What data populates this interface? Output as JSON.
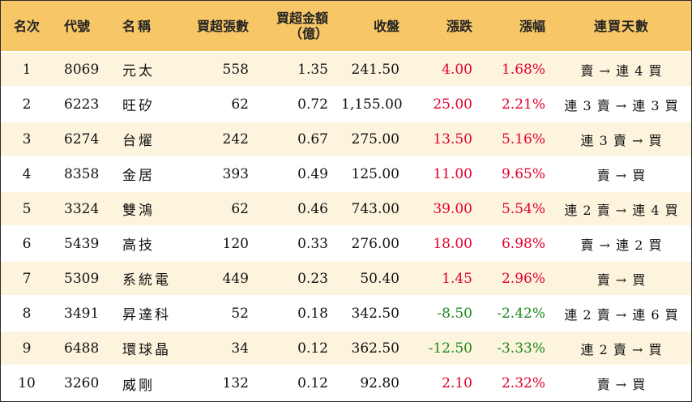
{
  "headers": {
    "rank": "名次",
    "code": "代號",
    "name": "名稱",
    "net_buy_lots": "買超張數",
    "net_buy_amount_line1": "買超金額",
    "net_buy_amount_line2": "（億）",
    "close": "收盤",
    "change": "漲跌",
    "change_pct": "漲幅",
    "streak": "連買天數"
  },
  "colors": {
    "header_bg": "#f7c767",
    "row_odd_bg": "#fdf4dd",
    "up": "#e4002b",
    "down": "#1d8a1d"
  },
  "rows": [
    {
      "rank": "1",
      "code": "8069",
      "name": "元太",
      "lots": "558",
      "amount": "1.35",
      "close": "241.50",
      "change": "4.00",
      "change_pct": "1.68%",
      "streak": "賣 → 連 4 買",
      "direction": "up"
    },
    {
      "rank": "2",
      "code": "6223",
      "name": "旺矽",
      "lots": "62",
      "amount": "0.72",
      "close": "1,155.00",
      "change": "25.00",
      "change_pct": "2.21%",
      "streak": "連 3 賣 → 連 3 買",
      "direction": "up"
    },
    {
      "rank": "3",
      "code": "6274",
      "name": "台燿",
      "lots": "242",
      "amount": "0.67",
      "close": "275.00",
      "change": "13.50",
      "change_pct": "5.16%",
      "streak": "連 3 賣 → 買",
      "direction": "up"
    },
    {
      "rank": "4",
      "code": "8358",
      "name": "金居",
      "lots": "393",
      "amount": "0.49",
      "close": "125.00",
      "change": "11.00",
      "change_pct": "9.65%",
      "streak": "賣 → 買",
      "direction": "up"
    },
    {
      "rank": "5",
      "code": "3324",
      "name": "雙鴻",
      "lots": "62",
      "amount": "0.46",
      "close": "743.00",
      "change": "39.00",
      "change_pct": "5.54%",
      "streak": "連 2 賣 → 連 4 買",
      "direction": "up"
    },
    {
      "rank": "6",
      "code": "5439",
      "name": "高技",
      "lots": "120",
      "amount": "0.33",
      "close": "276.00",
      "change": "18.00",
      "change_pct": "6.98%",
      "streak": "賣 → 連 2 買",
      "direction": "up"
    },
    {
      "rank": "7",
      "code": "5309",
      "name": "系統電",
      "lots": "449",
      "amount": "0.23",
      "close": "50.40",
      "change": "1.45",
      "change_pct": "2.96%",
      "streak": "賣 → 買",
      "direction": "up"
    },
    {
      "rank": "8",
      "code": "3491",
      "name": "昇達科",
      "lots": "52",
      "amount": "0.18",
      "close": "342.50",
      "change": "-8.50",
      "change_pct": "-2.42%",
      "streak": "連 2 賣 → 連 6 買",
      "direction": "down"
    },
    {
      "rank": "9",
      "code": "6488",
      "name": "環球晶",
      "lots": "34",
      "amount": "0.12",
      "close": "362.50",
      "change": "-12.50",
      "change_pct": "-3.33%",
      "streak": "連 2 賣 → 買",
      "direction": "down"
    },
    {
      "rank": "10",
      "code": "3260",
      "name": "威剛",
      "lots": "132",
      "amount": "0.12",
      "close": "92.80",
      "change": "2.10",
      "change_pct": "2.32%",
      "streak": "賣 → 買",
      "direction": "up"
    }
  ]
}
